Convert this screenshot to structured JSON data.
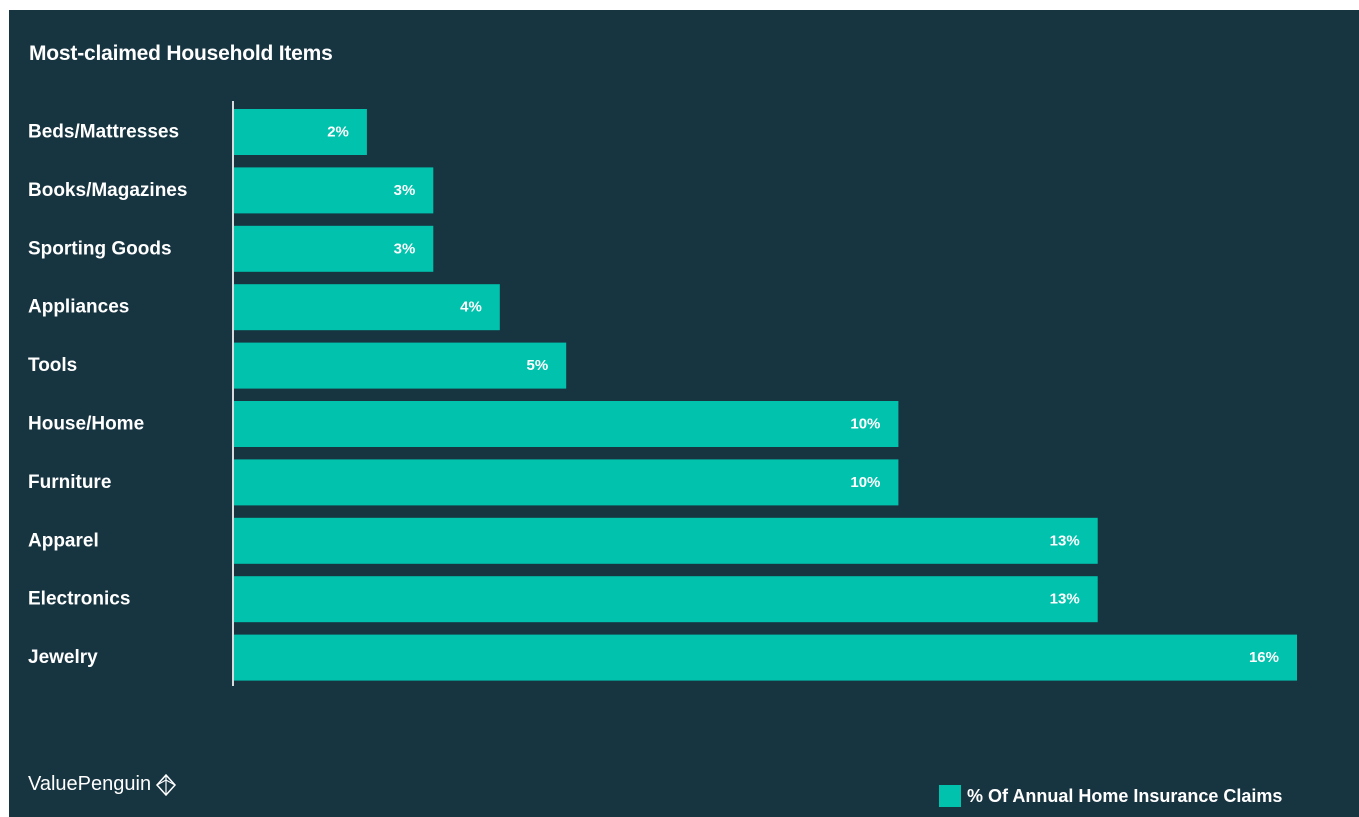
{
  "chart_data": {
    "type": "bar",
    "orientation": "horizontal",
    "title": "Most-claimed Household Items",
    "categories": [
      "Beds/Mattresses",
      "Books/Magazines",
      "Sporting Goods",
      "Appliances",
      "Tools",
      "House/Home",
      "Furniture",
      "Apparel",
      "Electronics",
      "Jewelry"
    ],
    "series": [
      {
        "name": "% Of Annual Home Insurance Claims",
        "values": [
          2,
          3,
          3,
          4,
          5,
          10,
          10,
          13,
          13,
          16
        ],
        "labels": [
          "2%",
          "3%",
          "3%",
          "4%",
          "5%",
          "10%",
          "10%",
          "13%",
          "13%",
          "16%"
        ]
      }
    ],
    "xlim": [
      0,
      16
    ],
    "xlabel": "",
    "ylabel": "",
    "grid": false,
    "legend_position": "bottom-right",
    "colors": {
      "background": "#173441",
      "bar": "#00c2ad",
      "axis": "#d9dcde",
      "text": "#ffffff"
    }
  },
  "brand": {
    "name": "ValuePenguin",
    "icon": "valuepenguin-logo-icon"
  }
}
